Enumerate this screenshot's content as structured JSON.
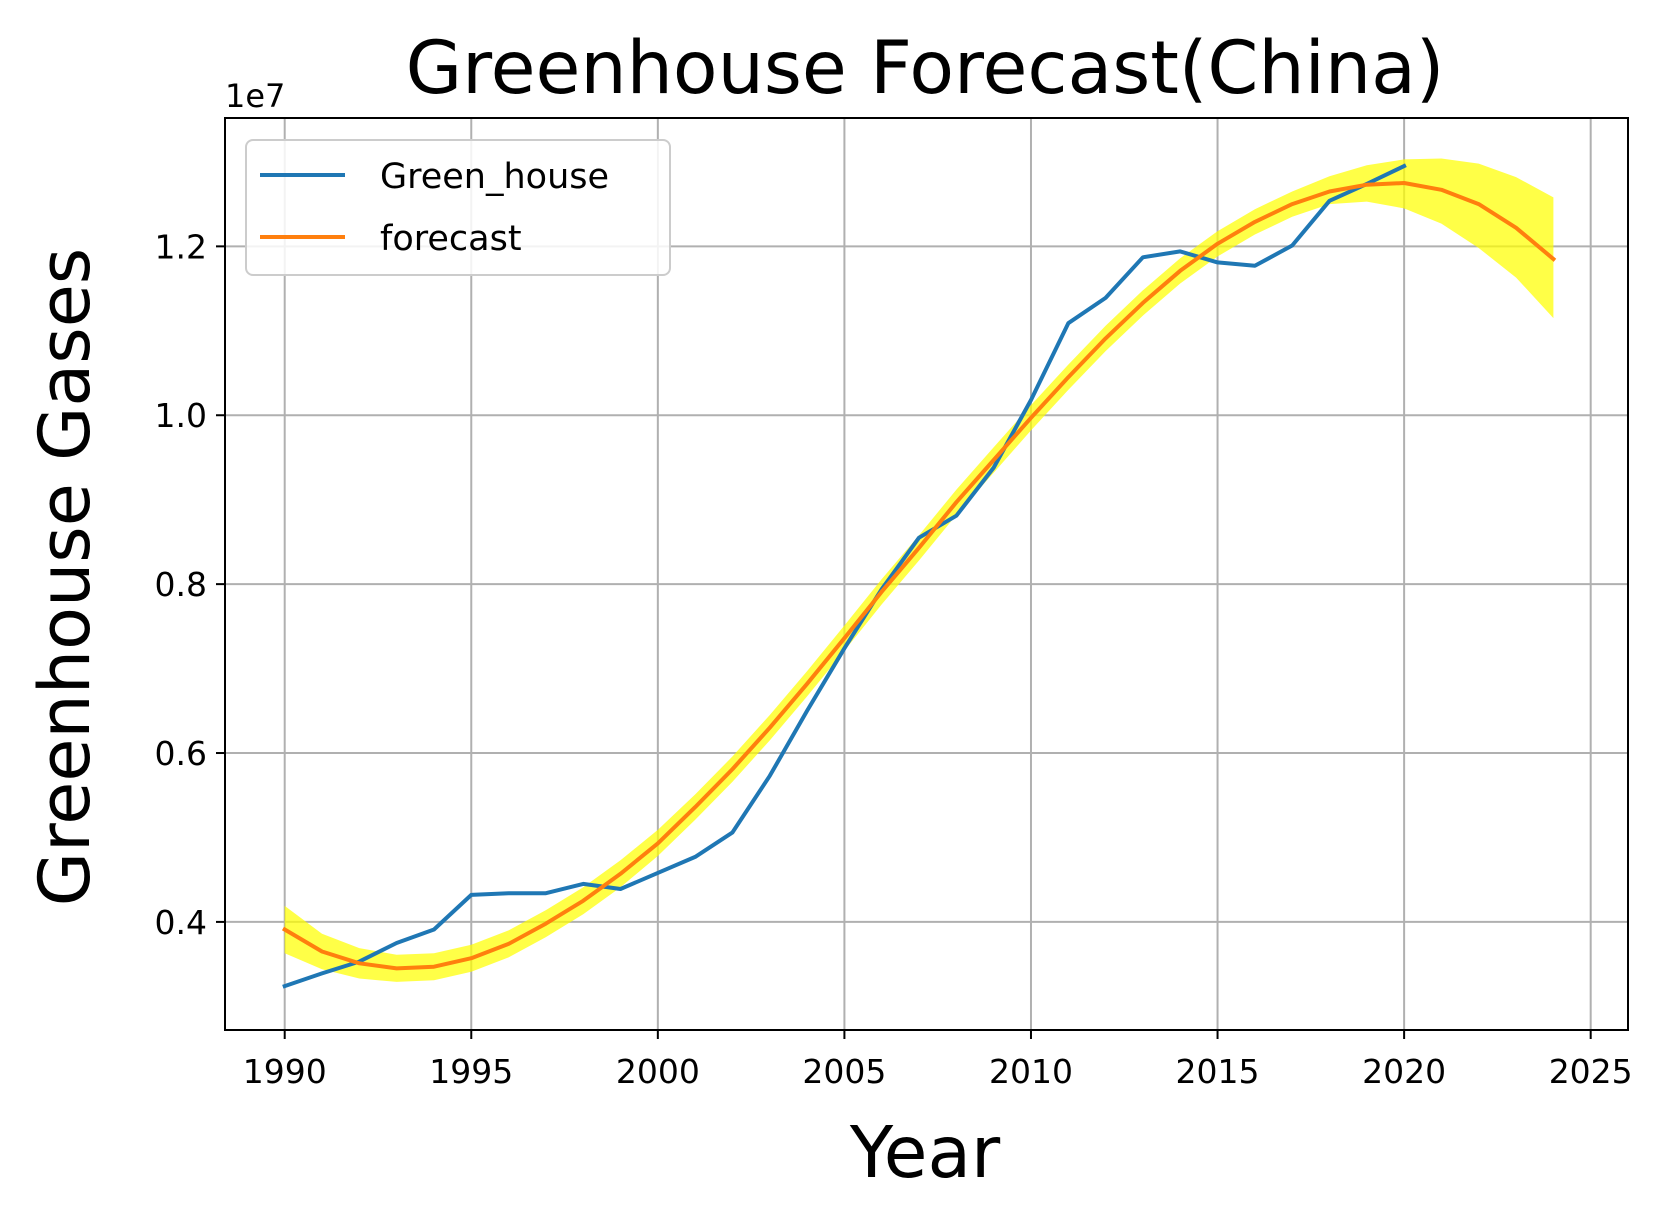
{
  "chart_data": {
    "type": "line",
    "title": "Greenhouse Forecast(China)",
    "xlabel": "Year",
    "ylabel": "Greenhouse Gases",
    "y_offset_label": "1e7",
    "xlim": [
      1988.4,
      2026.0
    ],
    "ylim": [
      2.72,
      13.52
    ],
    "x_ticks": [
      1990,
      1995,
      2000,
      2005,
      2010,
      2015,
      2020,
      2025
    ],
    "x_tick_labels": [
      "1990",
      "1995",
      "2000",
      "2005",
      "2010",
      "2015",
      "2020",
      "2025"
    ],
    "y_ticks": [
      4,
      6,
      8,
      10,
      12
    ],
    "y_tick_labels": [
      "0.4",
      "0.6",
      "0.8",
      "1.0",
      "1.2"
    ],
    "grid": true,
    "legend_position": "top-left",
    "colors": {
      "Green_house": "#1f77b4",
      "forecast": "#ff7f0e",
      "band": "#ffff00"
    },
    "series": [
      {
        "name": "Green_house",
        "x": [
          1990,
          1991,
          1992,
          1993,
          1994,
          1995,
          1996,
          1997,
          1998,
          1999,
          2000,
          2001,
          2002,
          2003,
          2004,
          2005,
          2006,
          2007,
          2008,
          2009,
          2010,
          2011,
          2012,
          2013,
          2014,
          2015,
          2016,
          2017,
          2018,
          2019,
          2020
        ],
        "values": [
          3.24,
          3.39,
          3.53,
          3.75,
          3.91,
          4.32,
          4.34,
          4.34,
          4.45,
          4.39,
          4.58,
          4.77,
          5.06,
          5.73,
          6.5,
          7.24,
          7.94,
          8.55,
          8.81,
          9.38,
          10.18,
          11.09,
          11.39,
          11.87,
          11.94,
          11.81,
          11.77,
          12.01,
          12.54,
          12.74,
          12.95
        ]
      },
      {
        "name": "forecast",
        "x": [
          1990,
          1991,
          1992,
          1993,
          1994,
          1995,
          1996,
          1997,
          1998,
          1999,
          2000,
          2001,
          2002,
          2003,
          2004,
          2005,
          2006,
          2007,
          2008,
          2009,
          2010,
          2011,
          2012,
          2013,
          2014,
          2015,
          2016,
          2017,
          2018,
          2019,
          2020,
          2021,
          2022,
          2023,
          2024
        ],
        "values": [
          3.91,
          3.65,
          3.51,
          3.45,
          3.47,
          3.57,
          3.74,
          3.98,
          4.25,
          4.57,
          4.93,
          5.36,
          5.81,
          6.3,
          6.82,
          7.36,
          7.91,
          8.43,
          8.97,
          9.47,
          9.97,
          10.45,
          10.91,
          11.33,
          11.71,
          12.03,
          12.29,
          12.5,
          12.65,
          12.73,
          12.75,
          12.67,
          12.5,
          12.22,
          11.85
        ]
      }
    ],
    "forecast_band": {
      "x": [
        1990,
        1991,
        1992,
        1993,
        1994,
        1995,
        1996,
        1997,
        1998,
        1999,
        2000,
        2001,
        2002,
        2003,
        2004,
        2005,
        2006,
        2007,
        2008,
        2009,
        2010,
        2011,
        2012,
        2013,
        2014,
        2015,
        2016,
        2017,
        2018,
        2019,
        2020,
        2021,
        2022,
        2023,
        2024
      ],
      "lower": [
        3.63,
        3.44,
        3.33,
        3.29,
        3.31,
        3.41,
        3.58,
        3.82,
        4.09,
        4.41,
        4.78,
        5.21,
        5.66,
        6.15,
        6.67,
        7.21,
        7.76,
        8.28,
        8.82,
        9.32,
        9.82,
        10.3,
        10.76,
        11.18,
        11.56,
        11.88,
        12.14,
        12.35,
        12.5,
        12.53,
        12.45,
        12.27,
        11.98,
        11.63,
        11.15
      ],
      "upper": [
        4.19,
        3.86,
        3.69,
        3.61,
        3.63,
        3.73,
        3.9,
        4.14,
        4.41,
        4.73,
        5.09,
        5.51,
        5.96,
        6.45,
        6.97,
        7.51,
        8.06,
        8.58,
        9.12,
        9.62,
        10.12,
        10.6,
        11.06,
        11.48,
        11.86,
        12.18,
        12.44,
        12.65,
        12.83,
        12.96,
        13.03,
        13.04,
        12.98,
        12.82,
        12.58
      ]
    }
  }
}
